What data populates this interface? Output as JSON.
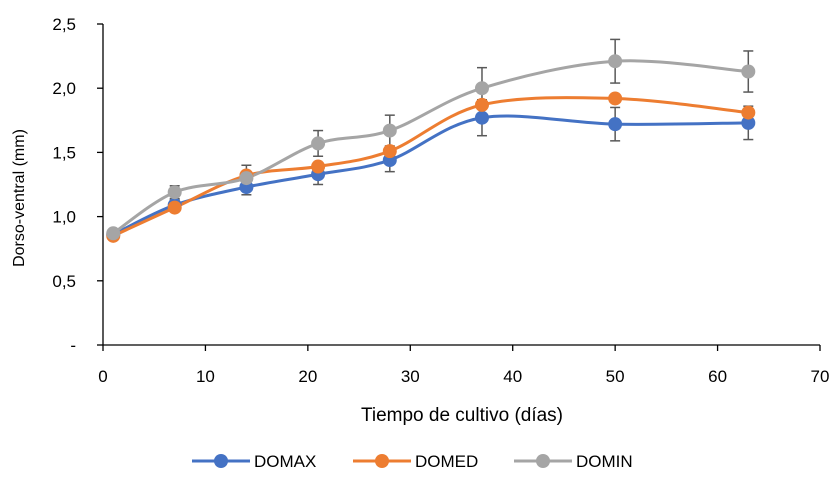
{
  "chart_data": {
    "type": "line",
    "title": "",
    "xlabel": "Tiempo de cultivo (días)",
    "ylabel": "Dorso-ventral (mm)",
    "xlim": [
      0,
      70
    ],
    "ylim": [
      0,
      2.5
    ],
    "x_ticks": [
      0,
      10,
      20,
      30,
      40,
      50,
      60,
      70
    ],
    "x_tick_labels": [
      "0",
      "10",
      "20",
      "30",
      "40",
      "50",
      "60",
      "70"
    ],
    "y_ticks": [
      0,
      0.5,
      1.0,
      1.5,
      2.0,
      2.5
    ],
    "y_tick_labels": [
      "-",
      "0,5",
      "1,0",
      "1,5",
      "2,0",
      "2,5"
    ],
    "grid": false,
    "legend_position": "bottom",
    "smooth": true,
    "error_bar_color": "#595959",
    "x": [
      1,
      7,
      14,
      21,
      28,
      37,
      50,
      63
    ],
    "series": [
      {
        "name": "DOMAX",
        "color": "#4472C4",
        "values": [
          0.86,
          1.09,
          1.23,
          1.33,
          1.44,
          1.77,
          1.72,
          1.73
        ],
        "errors": [
          0.02,
          0.04,
          0.06,
          0.08,
          0.09,
          0.14,
          0.13,
          0.13
        ]
      },
      {
        "name": "DOMED",
        "color": "#ED7D31",
        "values": [
          0.85,
          1.07,
          1.32,
          1.39,
          1.51,
          1.87,
          1.92,
          1.81
        ]
      },
      {
        "name": "DOMIN",
        "color": "#A5A5A5",
        "values": [
          0.87,
          1.19,
          1.3,
          1.57,
          1.67,
          2.0,
          2.21,
          2.13
        ],
        "errors": [
          0.02,
          0.05,
          0.1,
          0.1,
          0.12,
          0.16,
          0.17,
          0.16
        ]
      }
    ]
  }
}
